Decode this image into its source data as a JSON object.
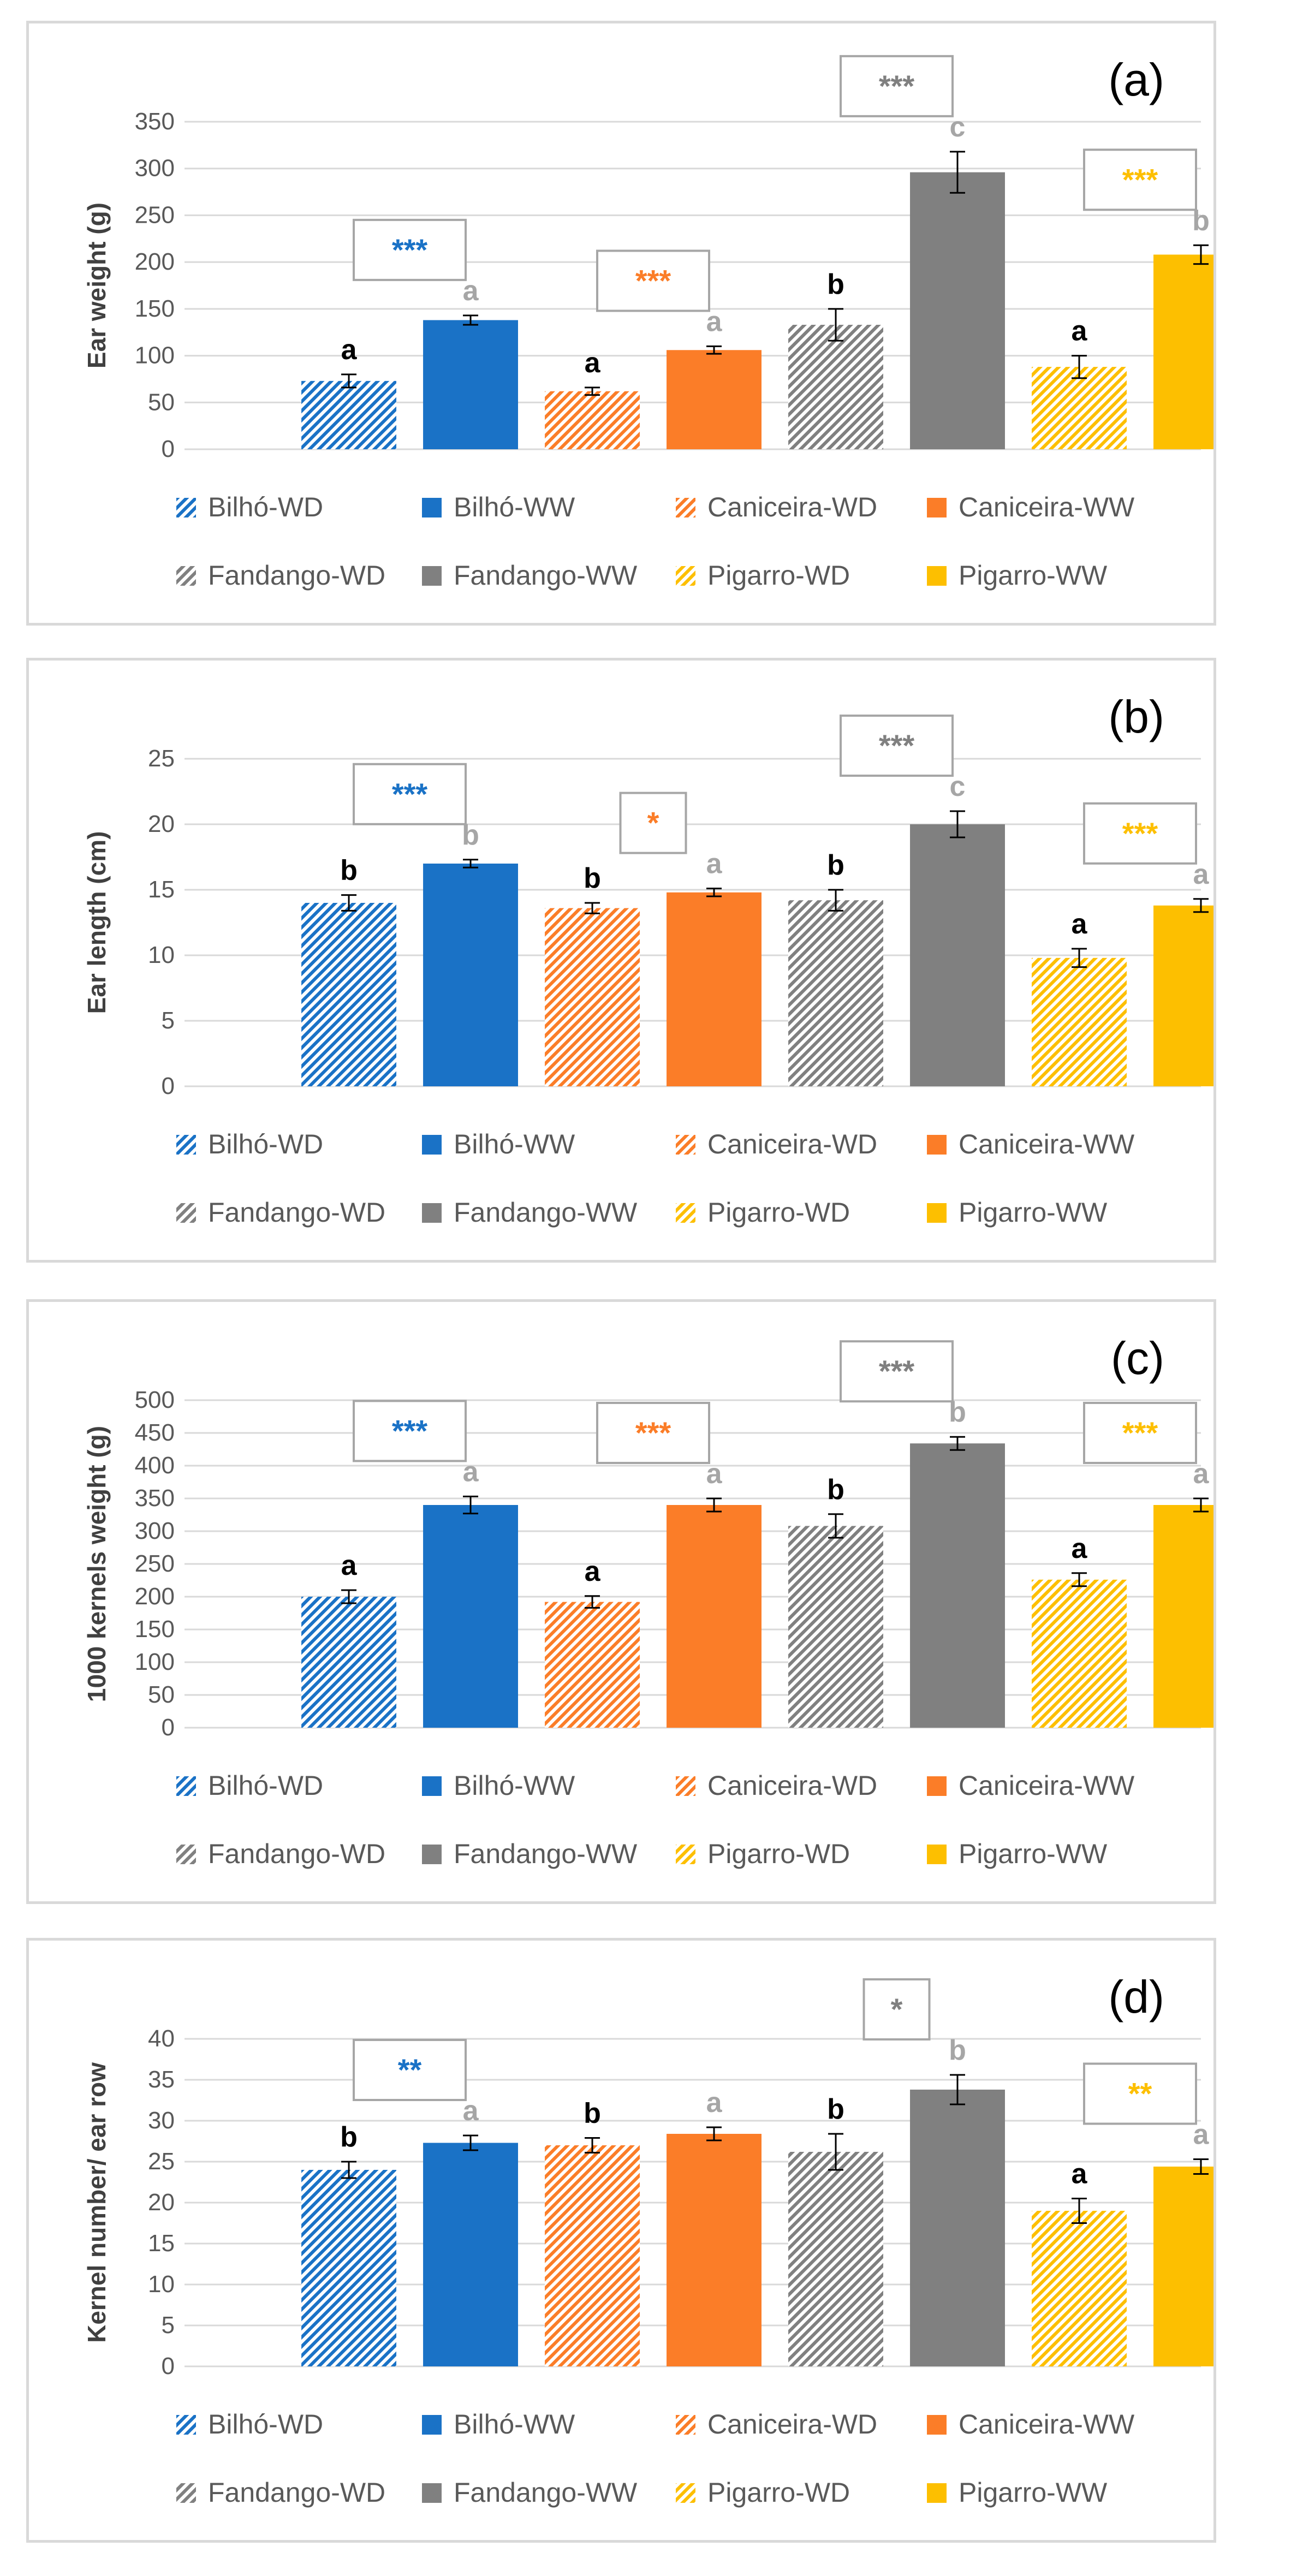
{
  "colors": {
    "bilho": "#1a72c6",
    "caniceira": "#fb7d28",
    "fandango": "#808080",
    "pigarro": "#fdbf00",
    "letter_wd": "#000000",
    "letter_ww": "#a6a6a6",
    "grid": "#d9d9d9"
  },
  "legend_items": [
    {
      "label": "Bilhó-WD",
      "color": "#1a72c6",
      "hatched": true
    },
    {
      "label": "Bilhó-WW",
      "color": "#1a72c6",
      "hatched": false
    },
    {
      "label": "Caniceira-WD",
      "color": "#fb7d28",
      "hatched": true
    },
    {
      "label": "Caniceira-WW",
      "color": "#fb7d28",
      "hatched": false
    },
    {
      "label": "Fandango-WD",
      "color": "#808080",
      "hatched": true
    },
    {
      "label": "Fandango-WW",
      "color": "#808080",
      "hatched": false
    },
    {
      "label": "Pigarro-WD",
      "color": "#fdbf00",
      "hatched": true
    },
    {
      "label": "Pigarro-WW",
      "color": "#fdbf00",
      "hatched": false
    }
  ],
  "chart_data": [
    {
      "type": "bar",
      "panel_label": "(a)",
      "ylabel": "Ear weight (g)",
      "ylim": [
        0,
        350
      ],
      "ytick_step": 50,
      "categories": [
        "Bilhó-WD",
        "Bilhó-WW",
        "Caniceira-WD",
        "Caniceira-WW",
        "Fandango-WD",
        "Fandango-WW",
        "Pigarro-WD",
        "Pigarro-WW"
      ],
      "values": [
        73,
        138,
        62,
        106,
        133,
        296,
        88,
        208
      ],
      "errors": [
        7,
        5,
        4,
        4,
        17,
        22,
        12,
        10
      ],
      "letters": [
        "a",
        "a",
        "a",
        "a",
        "b",
        "c",
        "a",
        "b"
      ],
      "significance": [
        "***",
        "***",
        "***",
        "***"
      ]
    },
    {
      "type": "bar",
      "panel_label": "(b)",
      "ylabel": "Ear length (cm)",
      "ylim": [
        0,
        25
      ],
      "ytick_step": 5,
      "categories": [
        "Bilhó-WD",
        "Bilhó-WW",
        "Caniceira-WD",
        "Caniceira-WW",
        "Fandango-WD",
        "Fandango-WW",
        "Pigarro-WD",
        "Pigarro-WW"
      ],
      "values": [
        14.0,
        17.0,
        13.6,
        14.8,
        14.2,
        20.0,
        9.8,
        13.8
      ],
      "errors": [
        0.6,
        0.3,
        0.4,
        0.3,
        0.8,
        1.0,
        0.7,
        0.5
      ],
      "letters": [
        "b",
        "b",
        "b",
        "a",
        "b",
        "c",
        "a",
        "a"
      ],
      "significance": [
        "***",
        "*",
        "***",
        "***"
      ]
    },
    {
      "type": "bar",
      "panel_label": "(c)",
      "ylabel": "1000 kernels weight (g)",
      "ylim": [
        0,
        500
      ],
      "ytick_step": 50,
      "categories": [
        "Bilhó-WD",
        "Bilhó-WW",
        "Caniceira-WD",
        "Caniceira-WW",
        "Fandango-WD",
        "Fandango-WW",
        "Pigarro-WD",
        "Pigarro-WW"
      ],
      "values": [
        200,
        340,
        192,
        340,
        308,
        434,
        226,
        340
      ],
      "errors": [
        10,
        13,
        9,
        10,
        18,
        10,
        10,
        10
      ],
      "letters": [
        "a",
        "a",
        "a",
        "a",
        "b",
        "b",
        "a",
        "a"
      ],
      "significance": [
        "***",
        "***",
        "***",
        "***"
      ]
    },
    {
      "type": "bar",
      "panel_label": "(d)",
      "ylabel": "Kernel number/ ear row",
      "ylim": [
        0,
        40
      ],
      "ytick_step": 5,
      "categories": [
        "Bilhó-WD",
        "Bilhó-WW",
        "Caniceira-WD",
        "Caniceira-WW",
        "Fandango-WD",
        "Fandango-WW",
        "Pigarro-WD",
        "Pigarro-WW"
      ],
      "values": [
        24.0,
        27.3,
        27.0,
        28.4,
        26.2,
        33.8,
        19.0,
        24.4
      ],
      "errors": [
        1.0,
        0.9,
        0.9,
        0.8,
        2.2,
        1.8,
        1.5,
        0.9
      ],
      "letters": [
        "b",
        "a",
        "b",
        "a",
        "b",
        "b",
        "a",
        "a"
      ],
      "significance": [
        "**",
        "",
        "*",
        "**"
      ]
    }
  ]
}
